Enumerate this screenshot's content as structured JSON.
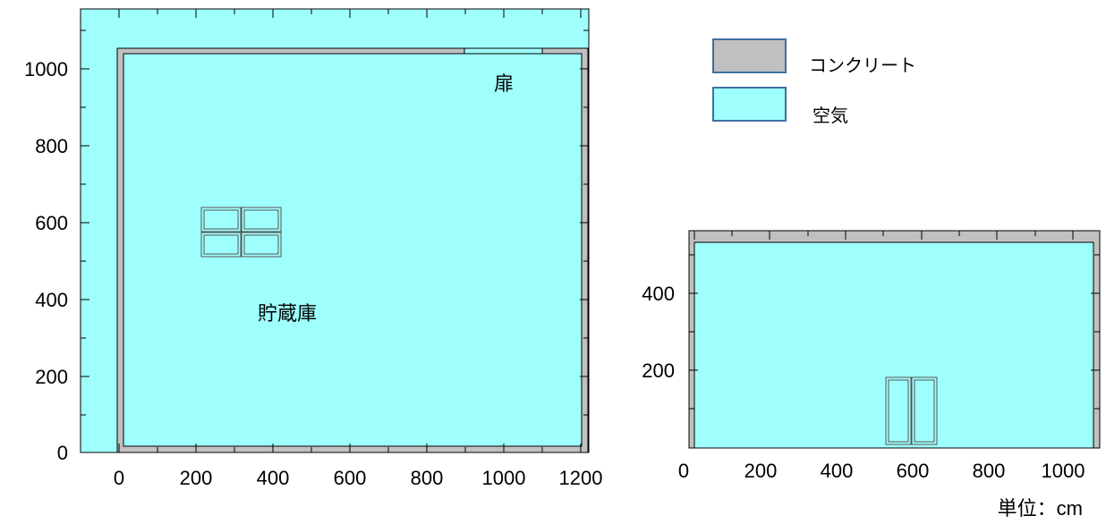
{
  "colors": {
    "concrete": "#c0c0c0",
    "air": "#9ffffd",
    "outline": "#3a3a3a",
    "legend_border": "#3f6fa0"
  },
  "legend": [
    {
      "label": "コンクリート",
      "material": "concrete"
    },
    {
      "label": "空気",
      "material": "air"
    }
  ],
  "plan_view": {
    "room_label": "貯蔵庫",
    "door_label": "扉",
    "x_ticks": [
      "0",
      "200",
      "400",
      "600",
      "800",
      "1000",
      "1200"
    ],
    "y_ticks": [
      "0",
      "200",
      "400",
      "600",
      "800",
      "1000"
    ]
  },
  "elevation_view": {
    "x_ticks": [
      "0",
      "200",
      "400",
      "600",
      "800",
      "1000"
    ],
    "y_ticks": [
      "200",
      "400"
    ]
  },
  "unit_label": "単位：cm"
}
